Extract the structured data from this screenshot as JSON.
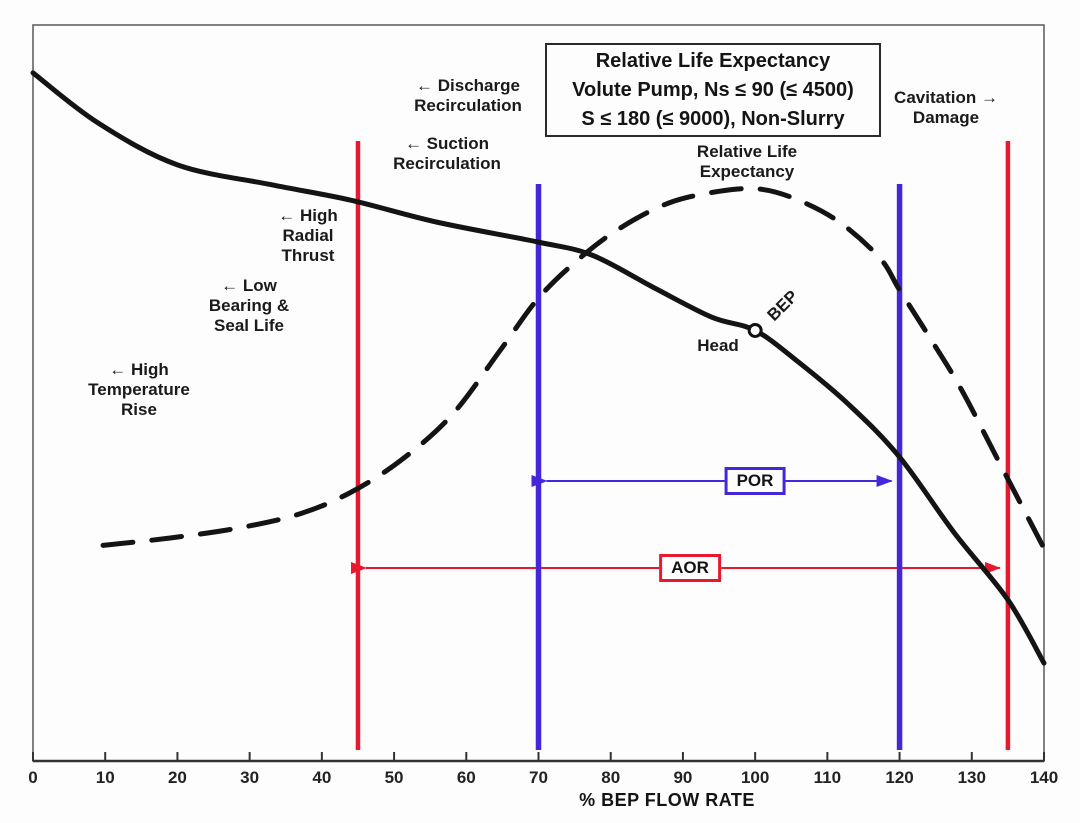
{
  "colors": {
    "aor": "#e8192f",
    "por": "#4527d9",
    "curve": "#141414",
    "frame": "#5a5a5a",
    "axis": "#333333"
  },
  "title_box": {
    "lines": [
      "Relative Life Expectancy",
      "Volute Pump, Ns ≤ 90 (≤ 4500)",
      "S ≤ 180 (≤ 9000), Non-Slurry"
    ]
  },
  "annotations": {
    "discharge_recirculation": {
      "text": "← Discharge\nRecirculation"
    },
    "suction_recirculation": {
      "text": "← Suction\nRecirculation"
    },
    "high_radial_thrust": {
      "text": "← High\nRadial\nThrust"
    },
    "low_bearing_seal_life": {
      "text": "← Low\nBearing &\nSeal Life"
    },
    "high_temperature_rise": {
      "text": "← High\nTemperature\nRise"
    },
    "cavitation_damage": {
      "text": "Cavitation →\nDamage"
    },
    "relative_life_expectancy": {
      "text": "Relative Life\nExpectancy"
    },
    "head": {
      "text": "Head"
    },
    "bep": {
      "text": "BEP"
    }
  },
  "chart_data": {
    "type": "line",
    "title": "Relative Life Expectancy — Volute Pump, Ns ≤ 90 (≤ 4500), S ≤ 180 (≤ 9000), Non-Slurry",
    "xlabel": "% BEP FLOW RATE",
    "ylabel": "",
    "xlim": [
      0,
      140
    ],
    "x_ticks": [
      0,
      10,
      20,
      30,
      40,
      50,
      60,
      70,
      80,
      90,
      100,
      110,
      120,
      130,
      140
    ],
    "y_units": "relative height, 0 = x-axis, 1 = top of plot (no y-axis scale shown)",
    "grid": false,
    "series": [
      {
        "name": "Head",
        "style": "solid",
        "points": [
          [
            0,
            0.935
          ],
          [
            9,
            0.867
          ],
          [
            20,
            0.81
          ],
          [
            33,
            0.783
          ],
          [
            44,
            0.762
          ],
          [
            56,
            0.732
          ],
          [
            70,
            0.705
          ],
          [
            77.5,
            0.687
          ],
          [
            86,
            0.643
          ],
          [
            94,
            0.603
          ],
          [
            100,
            0.585
          ],
          [
            106,
            0.542
          ],
          [
            113,
            0.484
          ],
          [
            120,
            0.413
          ],
          [
            127.5,
            0.311
          ],
          [
            135,
            0.219
          ],
          [
            140,
            0.133
          ]
        ]
      },
      {
        "name": "Relative Life Expectancy",
        "style": "dashed",
        "points": [
          [
            9.7,
            0.293
          ],
          [
            19,
            0.303
          ],
          [
            28.7,
            0.317
          ],
          [
            37,
            0.336
          ],
          [
            44,
            0.365
          ],
          [
            51,
            0.409
          ],
          [
            58,
            0.47
          ],
          [
            64.7,
            0.558
          ],
          [
            70,
            0.629
          ],
          [
            75.7,
            0.683
          ],
          [
            81.3,
            0.724
          ],
          [
            88,
            0.758
          ],
          [
            95,
            0.774
          ],
          [
            100.7,
            0.777
          ],
          [
            106,
            0.762
          ],
          [
            111.7,
            0.732
          ],
          [
            117.3,
            0.683
          ],
          [
            120,
            0.64
          ],
          [
            124.2,
            0.575
          ],
          [
            128.6,
            0.504
          ],
          [
            134,
            0.402
          ],
          [
            140,
            0.289
          ]
        ]
      }
    ],
    "markers": {
      "bep": {
        "x": 100,
        "y": 0.585,
        "label": "BEP",
        "curve": "Head"
      }
    },
    "ranges": {
      "por": {
        "label": "POR",
        "min": 70,
        "max": 120
      },
      "aor": {
        "label": "AOR",
        "min": 45,
        "max": 135
      }
    }
  }
}
